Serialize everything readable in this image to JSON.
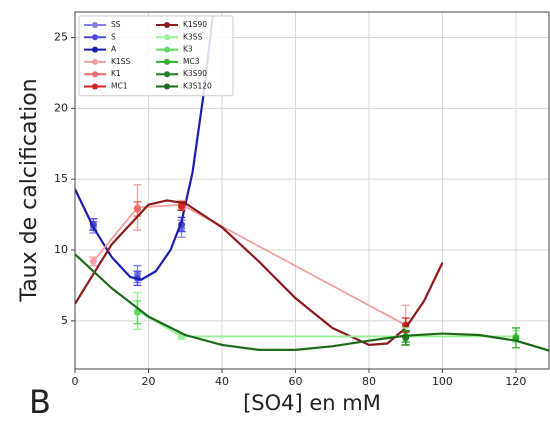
{
  "chart_data": {
    "type": "line",
    "panel": "B",
    "xlabel": "[SO4] en mM",
    "ylabel": "Taux de calcification",
    "xlim": [
      0,
      129
    ],
    "ylim": [
      1.6,
      26.8
    ],
    "xticks": [
      0,
      20,
      40,
      60,
      80,
      100,
      120
    ],
    "yticks": [
      5,
      10,
      15,
      20,
      25
    ],
    "grid": true,
    "legend": "upper left",
    "series": [
      {
        "name": "SS",
        "color": "#8080f0",
        "style": "errorbar",
        "x": [
          5,
          17,
          29
        ],
        "values": [
          11.6,
          8.3,
          11.5
        ],
        "errors": [
          0.4,
          0.6,
          0.6
        ]
      },
      {
        "name": "S",
        "color": "#4a4ae0",
        "style": "errorbar",
        "x": [
          5,
          17,
          29
        ],
        "values": [
          11.8,
          8.0,
          11.8
        ],
        "errors": [
          0.4,
          0.5,
          0.5
        ]
      },
      {
        "name": "A",
        "color": "#1c1cb0",
        "style": "curve",
        "x": [
          0,
          5,
          10,
          15,
          18,
          22,
          26,
          29,
          32,
          35,
          37.5
        ],
        "values": [
          14.3,
          11.6,
          9.5,
          8.1,
          7.9,
          8.5,
          10,
          12,
          15.5,
          21,
          26.5
        ]
      },
      {
        "name": "K1SS",
        "color": "#f4a0a0",
        "style": "errorbar-line",
        "x": [
          5,
          17,
          29,
          90
        ],
        "values": [
          9.2,
          13,
          13.2,
          4.7
        ],
        "errors": [
          0.3,
          1.6,
          0.3,
          1.4
        ]
      },
      {
        "name": "K1",
        "color": "#ec6a6a",
        "style": "errorbar",
        "x": [
          17,
          29
        ],
        "values": [
          12.9,
          13.1
        ],
        "errors": [
          0.5,
          0.3
        ]
      },
      {
        "name": "MC1",
        "color": "#d42020",
        "style": "errorbar",
        "x": [
          29,
          90
        ],
        "values": [
          13.1,
          4.7
        ],
        "errors": [
          0.3,
          0.5
        ]
      },
      {
        "name": "K1S90",
        "color": "#8e1a1a",
        "style": "curve",
        "x": [
          0,
          10,
          20,
          25,
          30,
          40,
          50,
          60,
          70,
          80,
          85,
          90,
          95,
          100
        ],
        "values": [
          6.2,
          10.4,
          13.2,
          13.5,
          13.3,
          11.6,
          9.2,
          6.6,
          4.5,
          3.3,
          3.4,
          4.5,
          6.4,
          9.1
        ]
      },
      {
        "name": "K3SS",
        "color": "#98f098",
        "style": "errorbar-line",
        "x": [
          17,
          29,
          90,
          120
        ],
        "values": [
          5.7,
          3.9,
          3.9,
          3.9
        ],
        "errors": [
          1.3,
          0.2,
          0.6,
          0.4
        ]
      },
      {
        "name": "K3",
        "color": "#5cdc5c",
        "style": "errorbar",
        "x": [
          17,
          90
        ],
        "values": [
          5.6,
          3.9
        ],
        "errors": [
          0.8,
          0.4
        ]
      },
      {
        "name": "MC3",
        "color": "#28b028",
        "style": "errorbar",
        "x": [
          90,
          120
        ],
        "values": [
          3.9,
          3.8
        ],
        "errors": [
          0.4,
          0.7
        ]
      },
      {
        "name": "K3S90",
        "color": "#208020",
        "style": "errorbar",
        "x": [
          90
        ],
        "values": [
          3.8
        ],
        "errors": [
          0.5
        ]
      },
      {
        "name": "K3S120",
        "color": "#1a6a1a",
        "style": "curve",
        "x": [
          0,
          10,
          20,
          30,
          40,
          50,
          60,
          70,
          80,
          90,
          100,
          110,
          120,
          129
        ],
        "values": [
          9.7,
          7.3,
          5.3,
          4.0,
          3.3,
          2.95,
          2.95,
          3.2,
          3.6,
          3.95,
          4.1,
          4.0,
          3.6,
          2.9
        ]
      }
    ]
  }
}
